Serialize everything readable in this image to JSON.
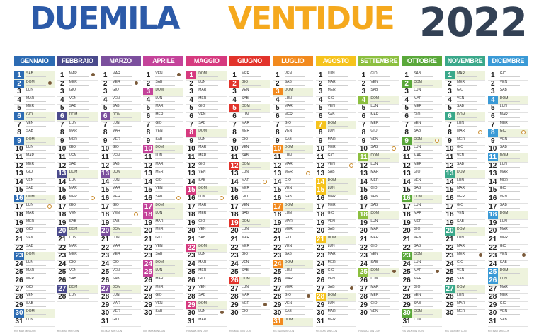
{
  "title": {
    "part1": "DUEMILA",
    "part2": "VENTIDUE",
    "year": "2022"
  },
  "months": [
    {
      "name": "GENNAIO",
      "color": "#2c6bb3",
      "days": 31,
      "startDow": 5,
      "holidays": [
        1,
        6
      ],
      "moons": [
        [
          2,
          "new"
        ],
        [
          17,
          "full"
        ]
      ]
    },
    {
      "name": "FEBBRAIO",
      "color": "#4a4a8c",
      "days": 28,
      "startDow": 1,
      "holidays": [],
      "moons": [
        [
          1,
          "new"
        ],
        [
          16,
          "full"
        ]
      ]
    },
    {
      "name": "MARZO",
      "color": "#7b4f9d",
      "days": 31,
      "startDow": 1,
      "holidays": [],
      "moons": [
        [
          2,
          "new"
        ],
        [
          18,
          "full"
        ]
      ]
    },
    {
      "name": "APRILE",
      "color": "#c4439a",
      "days": 30,
      "startDow": 4,
      "holidays": [
        17,
        18,
        25
      ],
      "moons": [
        [
          1,
          "new"
        ],
        [
          16,
          "full"
        ]
      ]
    },
    {
      "name": "MAGGIO",
      "color": "#d63a7f",
      "days": 31,
      "startDow": 6,
      "holidays": [
        1
      ],
      "moons": [
        [
          16,
          "full"
        ],
        [
          30,
          "new"
        ]
      ]
    },
    {
      "name": "GIUGNO",
      "color": "#e2332b",
      "days": 30,
      "startDow": 2,
      "holidays": [
        2
      ],
      "moons": [
        [
          14,
          "full"
        ],
        [
          29,
          "new"
        ]
      ]
    },
    {
      "name": "LUGLIO",
      "color": "#f28a1e",
      "days": 31,
      "startDow": 4,
      "holidays": [],
      "moons": [
        [
          13,
          "full"
        ],
        [
          28,
          "new"
        ]
      ]
    },
    {
      "name": "AGOSTO",
      "color": "#f6c31d",
      "days": 31,
      "startDow": 0,
      "holidays": [
        15
      ],
      "moons": [
        [
          12,
          "full"
        ],
        [
          27,
          "new"
        ]
      ]
    },
    {
      "name": "SETTEMBRE",
      "color": "#8cbf3f",
      "days": 30,
      "startDow": 3,
      "holidays": [],
      "moons": [
        [
          10,
          "full"
        ],
        [
          25,
          "new"
        ]
      ]
    },
    {
      "name": "OTTOBRE",
      "color": "#5aa83a",
      "days": 31,
      "startDow": 5,
      "holidays": [],
      "moons": [
        [
          9,
          "full"
        ],
        [
          25,
          "new"
        ]
      ]
    },
    {
      "name": "NOVEMBRE",
      "color": "#3aa88a",
      "days": 30,
      "startDow": 1,
      "holidays": [
        1
      ],
      "moons": [
        [
          8,
          "full"
        ],
        [
          23,
          "new"
        ]
      ]
    },
    {
      "name": "DICEMBRE",
      "color": "#3a9ad6",
      "days": 31,
      "startDow": 3,
      "holidays": [
        8,
        25,
        26
      ],
      "moons": [
        [
          8,
          "full"
        ],
        [
          23,
          "new"
        ]
      ]
    }
  ],
  "weekdays": [
    "LUN",
    "MAR",
    "MER",
    "GIO",
    "VEN",
    "SAB",
    "DOM"
  ],
  "footer_note": "RIS MAX MIN CON"
}
